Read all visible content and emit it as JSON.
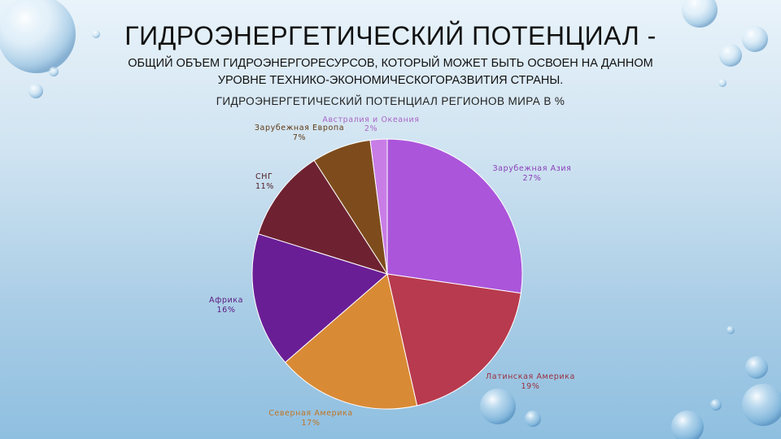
{
  "slide": {
    "title": "ГИДРОЭНЕРГЕТИЧЕСКИЙ ПОТЕНЦИАЛ -",
    "subtitle_line1": "ОБЩИЙ ОБЪЕМ ГИДРОЭНЕРГОРЕСУРСОВ, КОТОРЫЙ МОЖЕТ БЫТЬ ОСВОЕН НА ДАННОМ",
    "subtitle_line2": "УРОВНЕ ТЕХНИКО-ЭКОНОМИЧЕСКОГОРАЗВИТИЯ СТРАНЫ."
  },
  "chart_data": {
    "type": "pie",
    "title": "ГИДРОЭНЕРГЕТИЧЕСКИЙ ПОТЕНЦИАЛ РЕГИОНОВ МИРА В %",
    "slices": [
      {
        "name": "Зарубежная Азия",
        "value": 27,
        "label": "27%",
        "color": "#ab55db",
        "label_color": "#8a3fb8"
      },
      {
        "name": "Латинская Америка",
        "value": 19,
        "label": "19%",
        "color": "#b83a4e",
        "label_color": "#9a2e3f"
      },
      {
        "name": "Северная Америка",
        "value": 17,
        "label": "17%",
        "color": "#d98a35",
        "label_color": "#c07422"
      },
      {
        "name": "Африка",
        "value": 16,
        "label": "16%",
        "color": "#6a1e96",
        "label_color": "#5a1880"
      },
      {
        "name": "СНГ",
        "value": 11,
        "label": "11%",
        "color": "#6e2231",
        "label_color": "#4e1822"
      },
      {
        "name": "Зарубежная Европа",
        "value": 7,
        "label": "7%",
        "color": "#7e4c1c",
        "label_color": "#5e3814"
      },
      {
        "name": "Австралия и Океания",
        "value": 2,
        "label": "2%",
        "color": "#c87de6",
        "label_color": "#a866c6"
      }
    ]
  }
}
